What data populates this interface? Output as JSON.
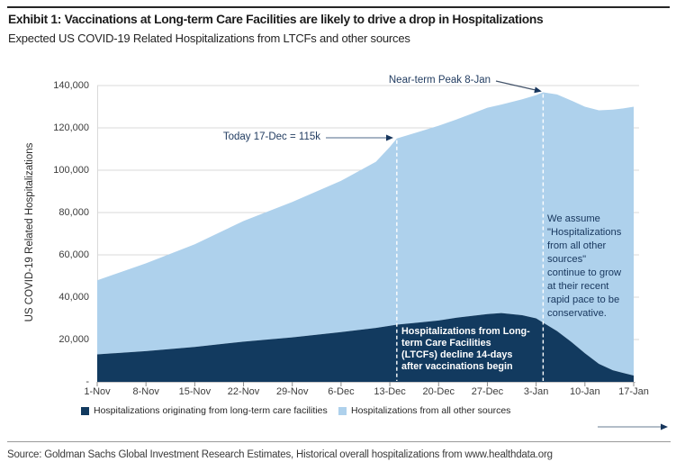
{
  "header": {
    "title": "Exhibit 1: Vaccinations at Long-term Care Facilities are likely to drive a drop in Hospitalizations",
    "subtitle": "Expected US COVID-19 Related Hospitalizations from LTCFs and other sources"
  },
  "source_line": "Source: Goldman Sachs Global Investment Research Estimates, Historical overall hospitalizations from www.healthdata.org",
  "annotations": {
    "today": "Today 17-Dec = 115k",
    "peak": "Near-term Peak 8-Jan",
    "ltcf_note": "Hospitalizations from Long-\nterm Care Facilities\n(LTCFs) decline 14-days\nafter vaccinations begin",
    "assumption_note": "We assume\n\"Hospitalizations\nfrom all other\nsources\"\ncontinue to grow\nat their recent\nrapid pace to be\nconservative."
  },
  "legend": {
    "items": [
      {
        "label": "Hospitalizations originating from long-term care facilities",
        "color": "#123a5f"
      },
      {
        "label": "Hospitalizations from all other sources",
        "color": "#aed1ec"
      }
    ]
  },
  "colors": {
    "ltcf_area": "#123a5f",
    "other_area": "#aed1ec",
    "gridline": "#d9d9d9",
    "axis_line": "#c6c6c6",
    "tick_mark": "#8c8c8c",
    "annotation_text": "#1f3a5f",
    "arrowhead": "#17365d",
    "marker_dash": "#ffffff"
  },
  "chart_data": {
    "type": "area",
    "stacked": true,
    "title": "Expected US COVID-19 Related Hospitalizations from LTCFs and other sources",
    "xlabel": "",
    "ylabel": "US COVID-19 Related Hospitalizations",
    "ylim": [
      0,
      140000
    ],
    "ytick_step": 20000,
    "ytick_labels": [
      "-",
      "20,000",
      "40,000",
      "60,000",
      "80,000",
      "100,000",
      "120,000",
      "140,000"
    ],
    "xtick_labels": [
      "1-Nov",
      "8-Nov",
      "15-Nov",
      "22-Nov",
      "29-Nov",
      "6-Dec",
      "13-Dec",
      "20-Dec",
      "27-Dec",
      "3-Jan",
      "10-Jan",
      "17-Jan"
    ],
    "grid": "horizontal",
    "legend_position": "bottom",
    "x_days": [
      0,
      7,
      14,
      21,
      28,
      35,
      40,
      42,
      43,
      46,
      49,
      52,
      56,
      58,
      61,
      63,
      64,
      66,
      68,
      70,
      72,
      74,
      75.5,
      77
    ],
    "series": [
      {
        "name": "Hospitalizations originating from long-term care facilities",
        "color": "#123a5f",
        "values": [
          13000,
          14500,
          16500,
          19000,
          21000,
          23500,
          25500,
          26500,
          27000,
          28000,
          29000,
          30500,
          32000,
          32500,
          31500,
          30000,
          28000,
          24000,
          19000,
          13500,
          8500,
          5500,
          4200,
          3000
        ]
      },
      {
        "name": "Hospitalizations from all other sources",
        "color": "#aed1ec",
        "values": [
          35000,
          41500,
          48500,
          57000,
          64000,
          71500,
          78500,
          84500,
          88000,
          90000,
          92000,
          94000,
          97500,
          98500,
          102000,
          105500,
          108800,
          111800,
          114000,
          116500,
          119800,
          123100,
          125000,
          127000
        ]
      }
    ],
    "markers": [
      {
        "label": "Today 17-Dec = 115k",
        "day": 43,
        "total": 115000
      },
      {
        "label": "Near-term Peak 8-Jan",
        "day": 64,
        "total": 136800
      }
    ]
  }
}
